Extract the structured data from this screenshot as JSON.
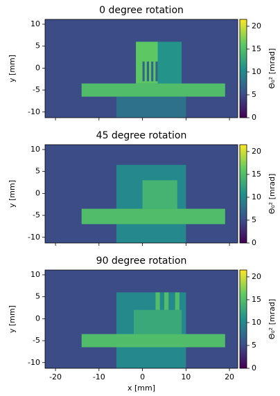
{
  "chart_data": [
    {
      "type": "heatmap",
      "title": "0 degree rotation",
      "ylabel": "y [mm]",
      "colorbar_label": "Θ₀² [mrad]",
      "colormap": "viridis",
      "xlim": [
        -22.4,
        21.9
      ],
      "ylim": [
        -11.3,
        11.1
      ],
      "xticks": [
        -20,
        -10,
        0,
        10,
        20
      ],
      "yticks": [
        -10,
        -5,
        0,
        5,
        10
      ],
      "show_xtick_labels": false,
      "clim": [
        0,
        21.5
      ],
      "cticks": [
        0,
        5,
        10,
        15,
        20
      ],
      "background": 5,
      "regions": [
        {
          "x": [
            -6,
            10
          ],
          "y": [
            -11.3,
            -5
          ],
          "value": 8
        },
        {
          "x": [
            -14,
            19
          ],
          "y": [
            -6.5,
            -3.5
          ],
          "value": 15
        },
        {
          "x": [
            -1.5,
            9
          ],
          "y": [
            -3.5,
            6
          ],
          "value": 11
        },
        {
          "x": [
            -1.5,
            3.5
          ],
          "y": [
            -3.5,
            6
          ],
          "value": 16
        },
        {
          "x": [
            0,
            0.5
          ],
          "y": [
            -3,
            1.5
          ],
          "value": 7
        },
        {
          "x": [
            1,
            1.5
          ],
          "y": [
            -3,
            1.5
          ],
          "value": 7
        },
        {
          "x": [
            2,
            2.5
          ],
          "y": [
            -3,
            1.5
          ],
          "value": 7
        },
        {
          "x": [
            3,
            3.5
          ],
          "y": [
            -3,
            1.5
          ],
          "value": 7
        }
      ]
    },
    {
      "type": "heatmap",
      "title": "45 degree rotation",
      "ylabel": "y [mm]",
      "colorbar_label": "Θ₀² [mrad]",
      "colormap": "viridis",
      "xlim": [
        -22.4,
        21.9
      ],
      "ylim": [
        -11.3,
        11.1
      ],
      "xticks": [
        -20,
        -10,
        0,
        10,
        20
      ],
      "yticks": [
        -10,
        -5,
        0,
        5,
        10
      ],
      "show_xtick_labels": false,
      "clim": [
        0,
        21.5
      ],
      "cticks": [
        0,
        5,
        10,
        15,
        20
      ],
      "background": 5,
      "regions": [
        {
          "x": [
            -6,
            10
          ],
          "y": [
            -11.3,
            6.5
          ],
          "value": 10
        },
        {
          "x": [
            -14,
            19
          ],
          "y": [
            -7,
            -3.5
          ],
          "value": 15
        },
        {
          "x": [
            0,
            8
          ],
          "y": [
            -3.5,
            3
          ],
          "value": 14
        }
      ]
    },
    {
      "type": "heatmap",
      "title": "90 degree rotation",
      "ylabel": "y [mm]",
      "xlabel": "x [mm]",
      "colorbar_label": "Θ₀² [mrad]",
      "colormap": "viridis",
      "xlim": [
        -22.4,
        21.9
      ],
      "ylim": [
        -11.3,
        11.1
      ],
      "xticks": [
        -20,
        -10,
        0,
        10,
        20
      ],
      "yticks": [
        -10,
        -5,
        0,
        5,
        10
      ],
      "show_xtick_labels": true,
      "clim": [
        0,
        21.5
      ],
      "cticks": [
        0,
        5,
        10,
        15,
        20
      ],
      "background": 5,
      "regions": [
        {
          "x": [
            -6,
            10
          ],
          "y": [
            -11.3,
            6
          ],
          "value": 10
        },
        {
          "x": [
            -14,
            19
          ],
          "y": [
            -6.5,
            -3.5
          ],
          "value": 15
        },
        {
          "x": [
            -2,
            9
          ],
          "y": [
            -3.5,
            2
          ],
          "value": 13
        },
        {
          "x": [
            3,
            4
          ],
          "y": [
            2,
            6
          ],
          "value": 15
        },
        {
          "x": [
            5,
            6
          ],
          "y": [
            2,
            6
          ],
          "value": 15
        },
        {
          "x": [
            7.5,
            8.5
          ],
          "y": [
            2,
            6
          ],
          "value": 15
        }
      ]
    }
  ]
}
